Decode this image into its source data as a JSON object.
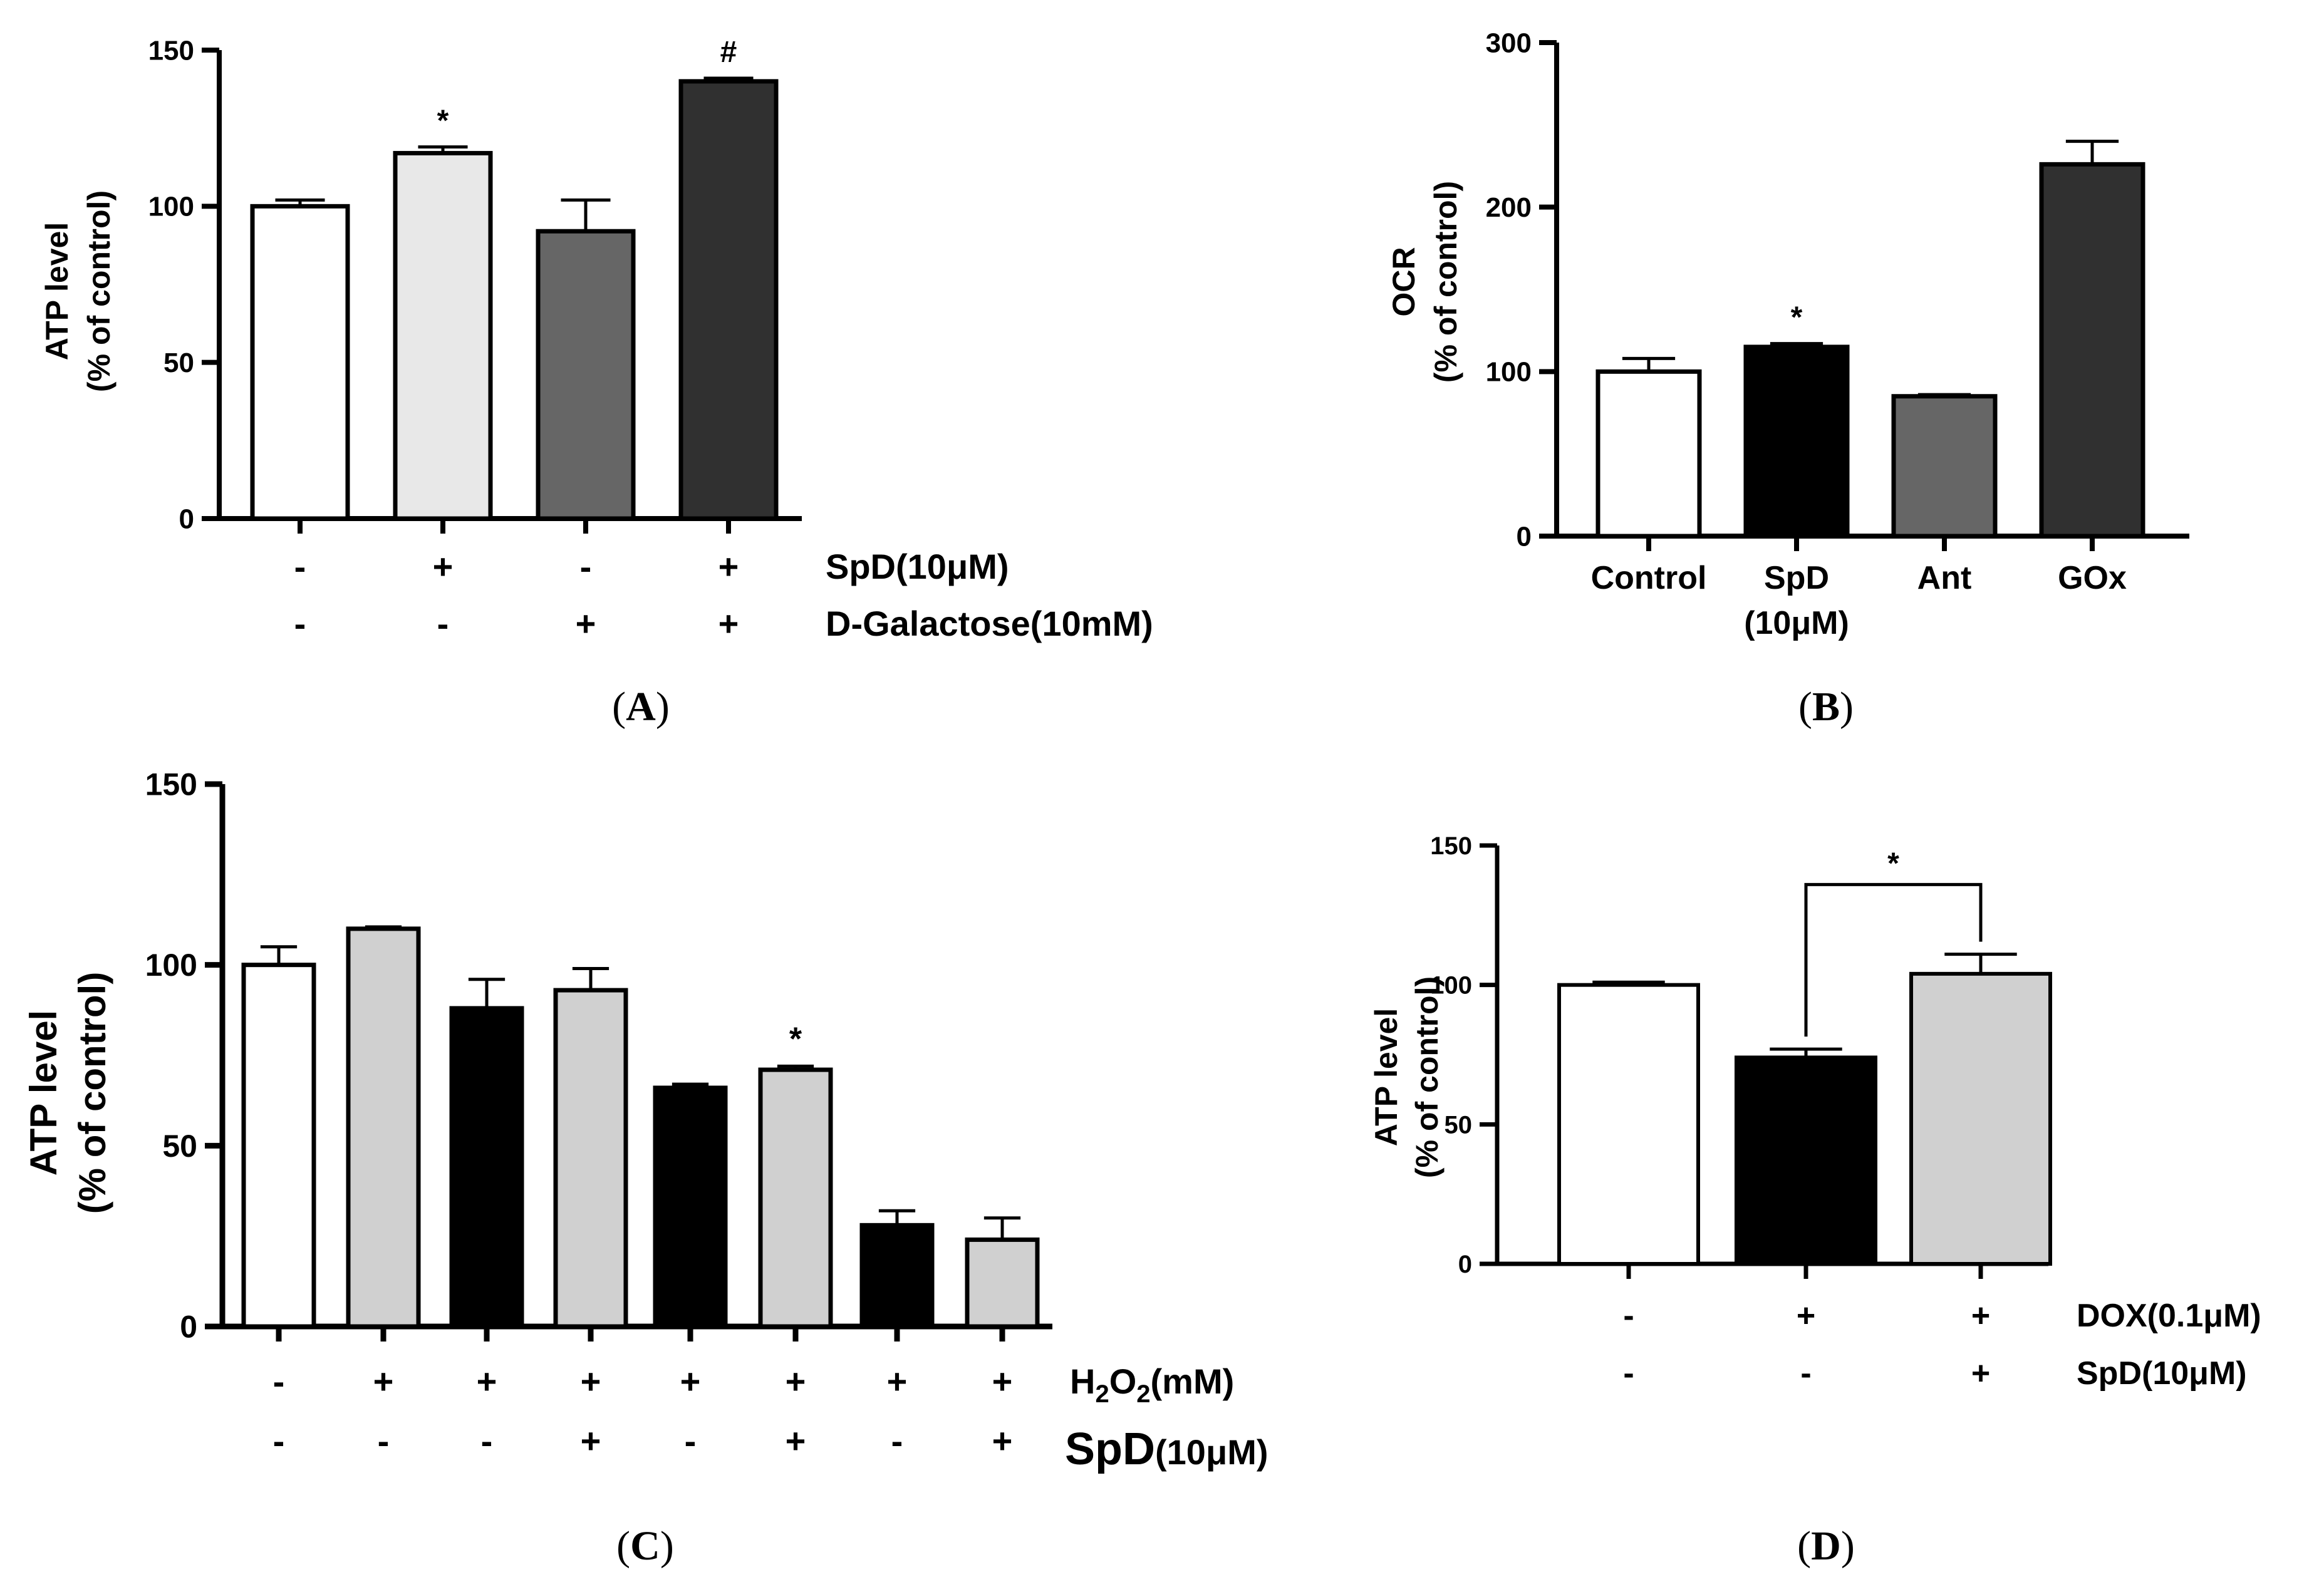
{
  "chart_data": [
    {
      "panel": "A",
      "type": "bar",
      "caption_letter": "A",
      "ylabel_line1": "ATP level",
      "ylabel_line2": "(%  of control)",
      "ylim": [
        0,
        150
      ],
      "yticks": [
        "0",
        "50",
        "100",
        "150"
      ],
      "values": [
        100,
        117,
        92,
        140
      ],
      "errors": [
        2,
        2,
        10,
        1
      ],
      "colors": [
        "#ffffff",
        "#e8e8e8",
        "#666666",
        "#303030"
      ],
      "significance": [
        "",
        "*",
        "",
        "#"
      ],
      "conditions": [
        {
          "label": "SpD(10μM)",
          "signs": [
            "-",
            "+",
            "-",
            "+"
          ]
        },
        {
          "label": "D-Galactose(10mM)",
          "signs": [
            "-",
            "-",
            "+",
            "+"
          ]
        }
      ]
    },
    {
      "panel": "B",
      "type": "bar",
      "caption_letter": "B",
      "ylabel_line1": "OCR",
      "ylabel_line2": "(%  of control)",
      "ylim": [
        0,
        300
      ],
      "yticks": [
        "0",
        "100",
        "200",
        "300"
      ],
      "categories": [
        "Control",
        "SpD",
        "Ant",
        "GOx"
      ],
      "category_sublabels": [
        "",
        "(10μM)",
        "",
        ""
      ],
      "values": [
        100,
        115,
        85,
        226
      ],
      "errors": [
        8,
        2,
        1,
        14
      ],
      "colors": [
        "#ffffff",
        "#000000",
        "#666666",
        "#303030"
      ],
      "significance": [
        "",
        "*",
        "",
        ""
      ]
    },
    {
      "panel": "C",
      "type": "bar",
      "caption_letter": "C",
      "ylabel_line1": "ATP level",
      "ylabel_line2": "(%  of control)",
      "ylim": [
        0,
        150
      ],
      "yticks": [
        "0",
        "50",
        "100",
        "150"
      ],
      "values": [
        100,
        110,
        88,
        93,
        66,
        71,
        28,
        24
      ],
      "errors": [
        5,
        0.5,
        8,
        6,
        1,
        1,
        4,
        6
      ],
      "colors": [
        "#ffffff",
        "#d0d0d0",
        "#000000",
        "#d0d0d0",
        "#000000",
        "#d0d0d0",
        "#000000",
        "#d0d0d0"
      ],
      "significance": [
        "",
        "",
        "",
        "",
        "",
        "*",
        "",
        ""
      ],
      "conditions": [
        {
          "label_main": "H",
          "label_sub1": "2",
          "label_mid": "O",
          "label_sub2": "2",
          "label_tail": "(mM)",
          "signs": [
            "-",
            "+",
            "+",
            "+",
            "+",
            "+",
            "+",
            "+"
          ]
        },
        {
          "label_main": "SpD",
          "label_tail": "(10μM)",
          "signs": [
            "-",
            "-",
            "-",
            "+",
            "-",
            "+",
            "-",
            "+"
          ]
        }
      ]
    },
    {
      "panel": "D",
      "type": "bar",
      "caption_letter": "D",
      "ylabel_line1": "ATP level",
      "ylabel_line2": "(%  of control)",
      "ylim": [
        0,
        150
      ],
      "yticks": [
        "0",
        "50",
        "100",
        "150"
      ],
      "values": [
        100,
        74,
        104
      ],
      "errors": [
        1,
        3,
        7
      ],
      "colors": [
        "#ffffff",
        "#000000",
        "#d0d0d0"
      ],
      "significance_bracket": {
        "from": 1,
        "to": 2,
        "label": "*"
      },
      "conditions": [
        {
          "label": "DOX(0.1μM)",
          "signs": [
            "-",
            "+",
            "+"
          ]
        },
        {
          "label": "SpD(10μM)",
          "signs": [
            "-",
            "-",
            "+"
          ]
        }
      ]
    }
  ]
}
